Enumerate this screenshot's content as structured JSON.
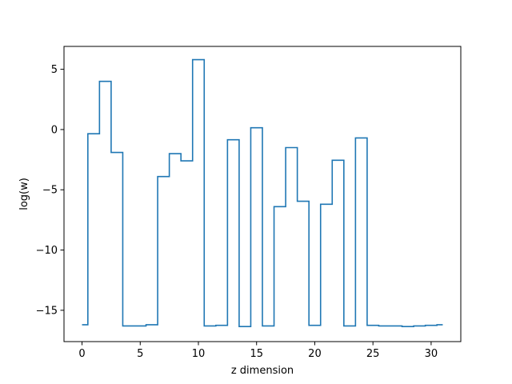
{
  "chart_data": {
    "type": "line",
    "drawstyle": "steps-mid",
    "xlabel": "z dimension",
    "ylabel": "log(w)",
    "xlim": [
      -1.55,
      32.55
    ],
    "ylim": [
      -17.6,
      6.9
    ],
    "xticks": [
      0,
      5,
      10,
      15,
      20,
      25,
      30
    ],
    "yticks": [
      5,
      0,
      -5,
      -10,
      -15
    ],
    "ytick_labels": [
      "5",
      "0",
      "−5",
      "−10",
      "−15"
    ],
    "grid": false,
    "legend": "none",
    "series": [
      {
        "color": "#1f77b4",
        "x": [
          0,
          1,
          2,
          3,
          4,
          5,
          6,
          7,
          8,
          9,
          10,
          11,
          12,
          13,
          14,
          15,
          16,
          17,
          18,
          19,
          20,
          21,
          22,
          23,
          24,
          25,
          26,
          27,
          28,
          29,
          30,
          31
        ],
        "y": [
          -16.2,
          -0.35,
          4.0,
          -1.9,
          -16.3,
          -16.3,
          -16.2,
          -3.9,
          -2.0,
          -2.6,
          5.8,
          -16.3,
          -16.25,
          -0.85,
          -16.35,
          0.15,
          -16.3,
          -6.4,
          -1.5,
          -5.95,
          -16.25,
          -6.2,
          -2.55,
          -16.3,
          -0.7,
          -16.25,
          -16.3,
          -16.3,
          -16.35,
          -16.3,
          -16.25,
          -16.2
        ]
      }
    ]
  }
}
